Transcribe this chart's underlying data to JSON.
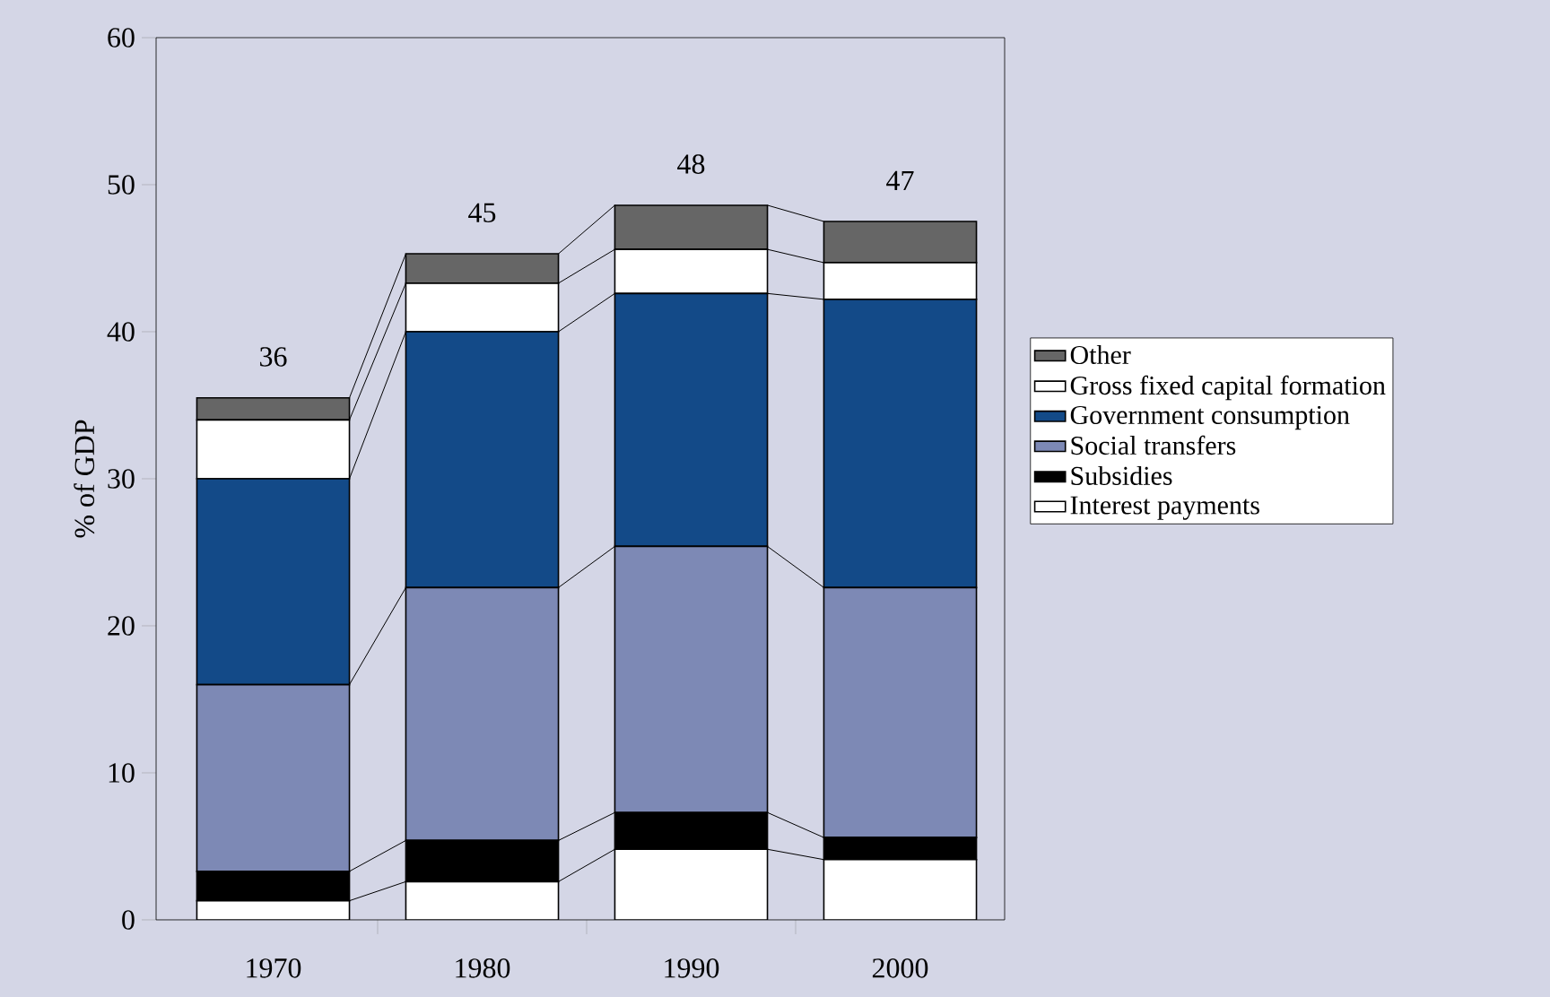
{
  "chart_data": {
    "type": "bar",
    "stacked": true,
    "ylabel": "% of GDP",
    "categories": [
      "1970",
      "1980",
      "1990",
      "2000"
    ],
    "series": [
      {
        "name": "Interest payments",
        "color": "#ffffff",
        "values": [
          1.3,
          2.6,
          4.8,
          4.1
        ]
      },
      {
        "name": "Subsidies",
        "color": "#000000",
        "values": [
          2.0,
          2.8,
          2.5,
          1.5
        ]
      },
      {
        "name": "Social transfers",
        "color": "#7d89b5",
        "values": [
          12.7,
          17.2,
          18.1,
          17.0
        ]
      },
      {
        "name": "Government consumption",
        "color": "#134a88",
        "values": [
          14.0,
          17.4,
          17.2,
          19.6
        ]
      },
      {
        "name": "Gross fixed capital formation",
        "color": "#ffffff",
        "values": [
          4.0,
          3.3,
          3.0,
          2.5
        ]
      },
      {
        "name": "Other",
        "color": "#666666",
        "values": [
          1.5,
          2.0,
          3.0,
          2.8
        ]
      }
    ],
    "totals": [
      "36",
      "45",
      "48",
      "47"
    ],
    "ylim": [
      0,
      60
    ],
    "yticks": [
      0,
      10,
      20,
      30,
      40,
      50,
      60
    ],
    "grid": false,
    "legend": "right"
  }
}
